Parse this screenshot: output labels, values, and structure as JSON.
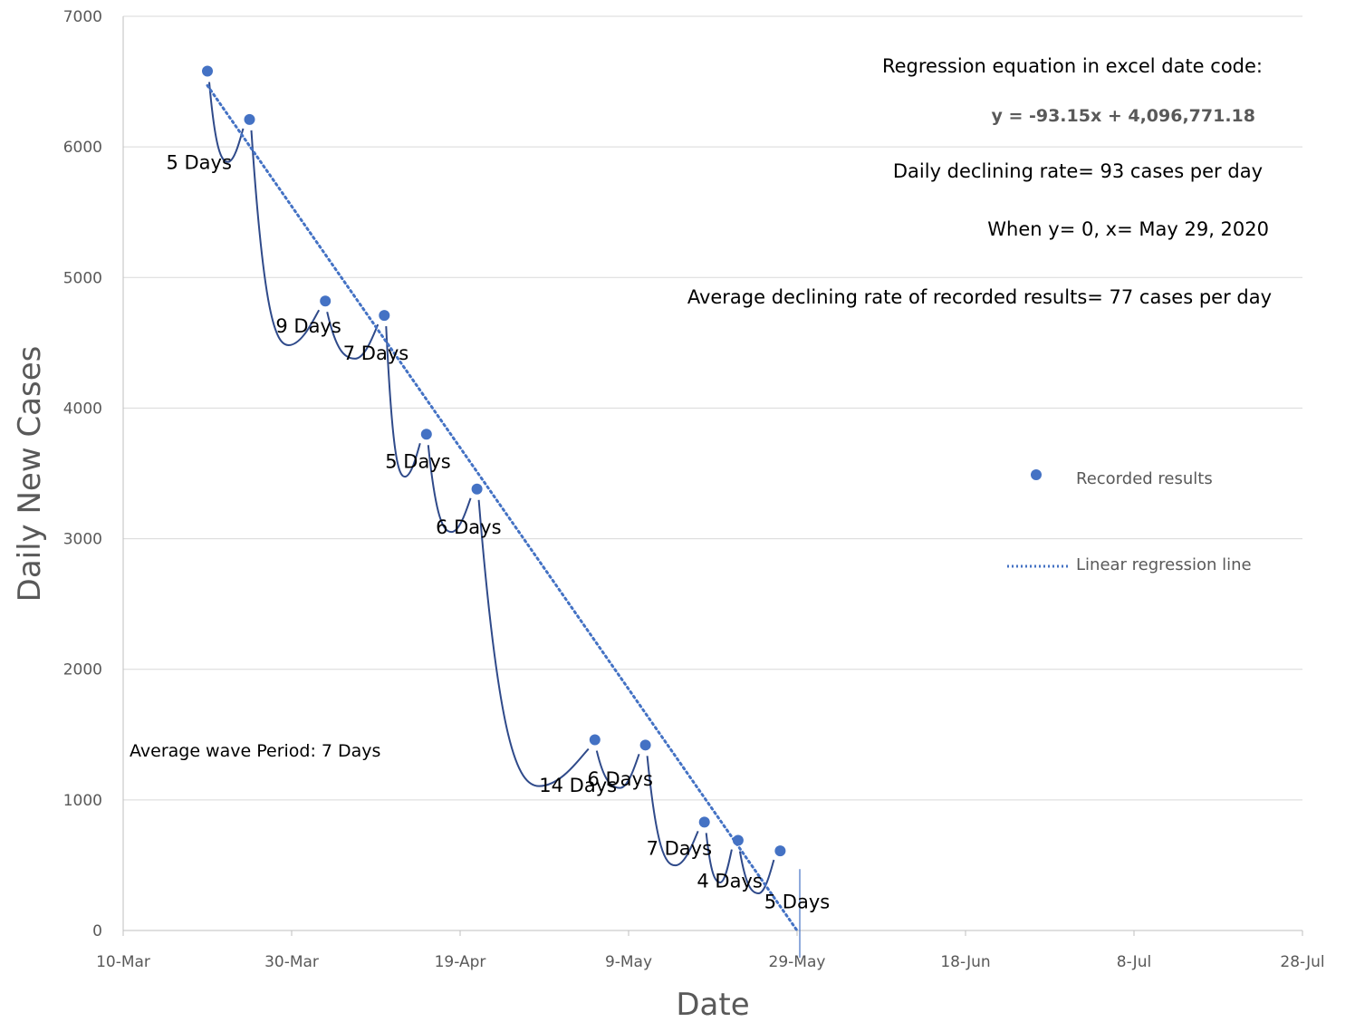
{
  "chart_data": {
    "type": "scatter",
    "title": "",
    "xlabel": "Date",
    "ylabel": "Daily New Cases",
    "ylim": [
      0,
      7000
    ],
    "y_ticks": [
      "0",
      "1000",
      "2000",
      "3000",
      "4000",
      "5000",
      "6000",
      "7000"
    ],
    "x_ticks": [
      "10-Mar",
      "30-Mar",
      "19-Apr",
      "9-May",
      "29-May",
      "18-Jun",
      "8-Jul",
      "28-Jul"
    ],
    "x_tick_dates": [
      "2020-03-10",
      "2020-03-30",
      "2020-04-19",
      "2020-05-09",
      "2020-05-29",
      "2020-06-18",
      "2020-07-08",
      "2020-07-28"
    ],
    "grid": "horizontal",
    "legend_position": "right",
    "series": [
      {
        "name": "Recorded results",
        "marker": "circle",
        "color": "#4472C4",
        "points": [
          {
            "x": "2020-03-20",
            "y": 6580
          },
          {
            "x": "2020-03-25",
            "y": 6210
          },
          {
            "x": "2020-04-03",
            "y": 4820
          },
          {
            "x": "2020-04-10",
            "y": 4710
          },
          {
            "x": "2020-04-15",
            "y": 3800
          },
          {
            "x": "2020-04-21",
            "y": 3380
          },
          {
            "x": "2020-05-05",
            "y": 1460
          },
          {
            "x": "2020-05-11",
            "y": 1420
          },
          {
            "x": "2020-05-18",
            "y": 830
          },
          {
            "x": "2020-05-22",
            "y": 690
          },
          {
            "x": "2020-05-27",
            "y": 610
          }
        ]
      },
      {
        "name": "Linear regression line",
        "style": "dotted",
        "color": "#4472C4",
        "points": [
          {
            "x": "2020-03-20",
            "y": 6470
          },
          {
            "x": "2020-05-29",
            "y": 0
          }
        ]
      }
    ],
    "wave_labels": [
      {
        "text": "5 Days",
        "x": "2020-03-19",
        "y": 5830
      },
      {
        "text": "9 Days",
        "x": "2020-04-01",
        "y": 4580
      },
      {
        "text": "7 Days",
        "x": "2020-04-09",
        "y": 4370
      },
      {
        "text": "5 Days",
        "x": "2020-04-14",
        "y": 3540
      },
      {
        "text": "6 Days",
        "x": "2020-04-20",
        "y": 3040
      },
      {
        "text": "14 Days",
        "x": "2020-05-03",
        "y": 1060
      },
      {
        "text": "6 Days",
        "x": "2020-05-08",
        "y": 1110
      },
      {
        "text": "7 Days",
        "x": "2020-05-15",
        "y": 580
      },
      {
        "text": "4 Days",
        "x": "2020-05-21",
        "y": 330
      },
      {
        "text": "5 Days",
        "x": "2020-05-29",
        "y": 170
      }
    ],
    "annotations": {
      "regression_heading": "Regression equation in excel date code:",
      "equation": "y = -93.15x + 4,096,771.18",
      "daily_rate": "Daily declining rate= 93 cases per day",
      "zero_crossing": "When y= 0, x= May 29, 2020",
      "average_rate": "Average declining rate of recorded results= 77 cases per day",
      "average_wave": "Average wave Period: 7 Days"
    }
  }
}
